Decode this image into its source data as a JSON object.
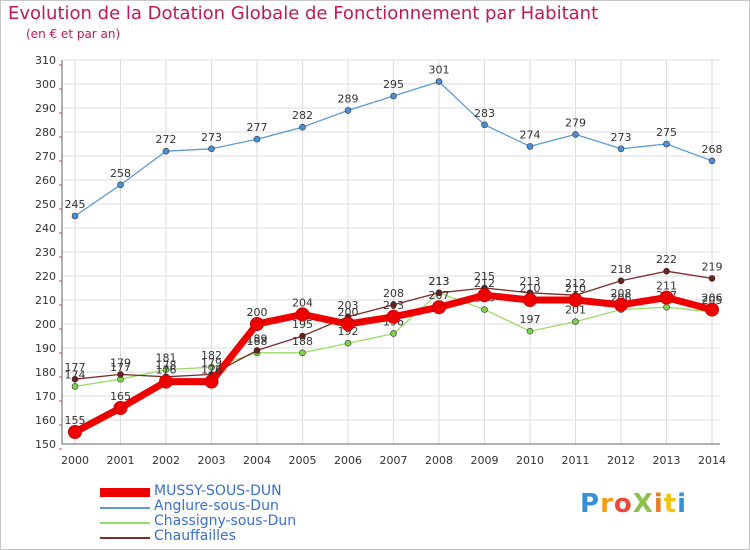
{
  "header": {
    "title": "Evolution de la Dotation Globale de Fonctionnement par Habitant",
    "subtitle": "(en € et par an)"
  },
  "logo": {
    "text": "ProXiti",
    "colors": [
      "#3a8fd9",
      "#f39c12",
      "#e74c3c",
      "#8bc34a",
      "#e67e22",
      "#f1c40f",
      "#3a8fd9"
    ]
  },
  "colors": {
    "title": "#c2185b",
    "legend_text": "#3a6fd1",
    "grid": "#dddddd",
    "axis_tick": "#e53935"
  },
  "chart_data": {
    "type": "line",
    "title": "Evolution de la Dotation Globale de Fonctionnement par Habitant",
    "subtitle": "(en € et par an)",
    "x": [
      "2000",
      "2001",
      "2002",
      "2003",
      "2004",
      "2005",
      "2006",
      "2007",
      "2008",
      "2009",
      "2010",
      "2011",
      "2012",
      "2013",
      "2014"
    ],
    "ylim": [
      150,
      310
    ],
    "yticks": [
      150,
      160,
      170,
      180,
      190,
      200,
      210,
      220,
      230,
      240,
      250,
      260,
      270,
      280,
      290,
      300,
      310
    ],
    "grid": true,
    "legend_position": "bottom-left",
    "series": [
      {
        "name": "Anglure-sous-Dun",
        "color": "#5b9bd5",
        "marker": "#4a90d9",
        "values": [
          245,
          258,
          272,
          273,
          277,
          282,
          289,
          295,
          301,
          283,
          274,
          279,
          273,
          275,
          268
        ]
      },
      {
        "name": "Chassigny-sous-Dun",
        "color": "#99dd66",
        "marker": "#7cd24a",
        "values": [
          174,
          177,
          181,
          182,
          188,
          188,
          192,
          196,
          213,
          206,
          197,
          201,
          206,
          207,
          205
        ]
      },
      {
        "name": "Chauffailles",
        "color": "#7b2c2c",
        "marker": "#6b1f1f",
        "values": [
          177,
          179,
          178,
          179,
          189,
          195,
          203,
          208,
          213,
          215,
          213,
          212,
          218,
          222,
          219
        ]
      },
      {
        "name": "MUSSY-SOUS-DUN",
        "color": "#ee0000",
        "marker": "#ee0000",
        "values": [
          155,
          165,
          176,
          176,
          200,
          204,
          200,
          203,
          207,
          212,
          210,
          210,
          208,
          211,
          206
        ]
      }
    ],
    "legend_order": [
      "MUSSY-SOUS-DUN",
      "Anglure-sous-Dun",
      "Chassigny-sous-Dun",
      "Chauffailles"
    ]
  }
}
